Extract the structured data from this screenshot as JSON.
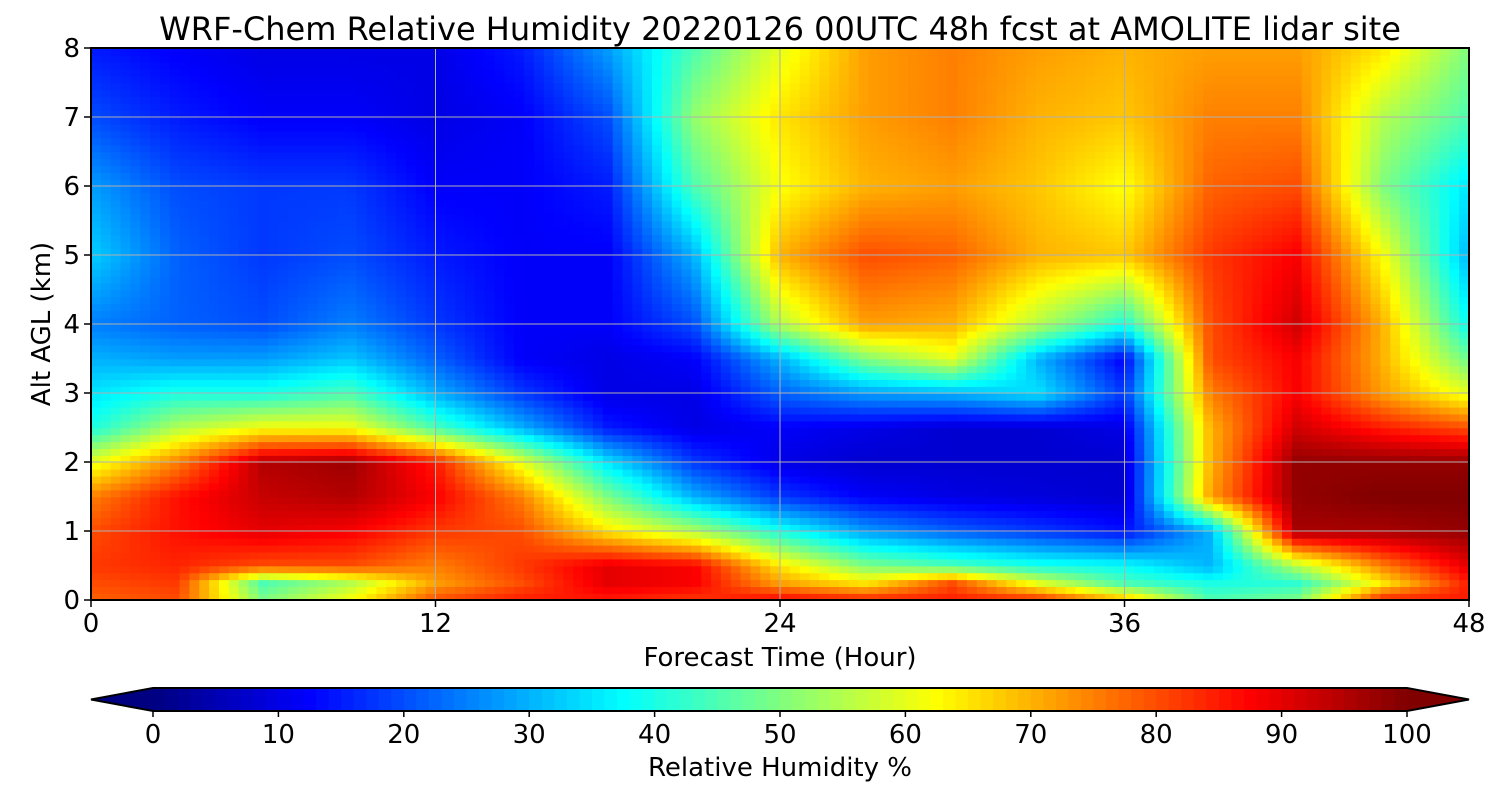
{
  "chart_data": {
    "type": "heatmap",
    "title": "WRF-Chem Relative Humidity 20220126 00UTC 48h fcst at AMOLITE lidar site",
    "xlabel": "Forecast Time (Hour)",
    "ylabel": "Alt AGL (km)",
    "xlim": [
      0,
      48
    ],
    "ylim": [
      0,
      8
    ],
    "x_ticks": [
      "0",
      "12",
      "24",
      "36",
      "48"
    ],
    "y_ticks": [
      "0",
      "1",
      "2",
      "3",
      "4",
      "5",
      "6",
      "7",
      "8"
    ],
    "grid": true,
    "colormap": "jet",
    "colorbar": {
      "label": "Relative Humidity %",
      "range": [
        0,
        100
      ],
      "ticks": [
        "0",
        "10",
        "20",
        "30",
        "40",
        "50",
        "60",
        "70",
        "80",
        "90",
        "100"
      ],
      "extend": "both",
      "orientation": "horizontal"
    },
    "z_units": "%",
    "x": [
      0,
      3,
      6,
      9,
      12,
      15,
      18,
      21,
      24,
      27,
      30,
      33,
      36,
      39,
      42,
      45,
      48
    ],
    "y": [
      0,
      0.25,
      0.5,
      1,
      1.5,
      2,
      2.5,
      3,
      3.5,
      4,
      5,
      6,
      7,
      8
    ],
    "z": [
      [
        78,
        80,
        50,
        62,
        80,
        85,
        85,
        82,
        88,
        85,
        85,
        84,
        70,
        45,
        50,
        85,
        85
      ],
      [
        80,
        82,
        45,
        55,
        72,
        80,
        90,
        88,
        72,
        65,
        80,
        60,
        45,
        40,
        42,
        65,
        85
      ],
      [
        82,
        84,
        80,
        80,
        75,
        82,
        90,
        88,
        65,
        50,
        45,
        40,
        38,
        30,
        55,
        75,
        90
      ],
      [
        80,
        86,
        90,
        88,
        82,
        80,
        65,
        55,
        40,
        28,
        22,
        18,
        14,
        30,
        96,
        96,
        98
      ],
      [
        75,
        86,
        93,
        95,
        88,
        75,
        50,
        30,
        18,
        12,
        10,
        9,
        8,
        72,
        98,
        100,
        100
      ],
      [
        60,
        75,
        95,
        97,
        85,
        60,
        35,
        18,
        10,
        8,
        8,
        8,
        8,
        70,
        98,
        98,
        98
      ],
      [
        40,
        55,
        62,
        62,
        45,
        30,
        15,
        10,
        12,
        10,
        8,
        8,
        10,
        70,
        92,
        85,
        80
      ],
      [
        35,
        40,
        40,
        45,
        30,
        18,
        10,
        10,
        22,
        28,
        30,
        35,
        18,
        75,
        88,
        72,
        60
      ],
      [
        30,
        28,
        28,
        32,
        22,
        12,
        10,
        12,
        30,
        50,
        60,
        30,
        12,
        80,
        88,
        70,
        48
      ],
      [
        25,
        22,
        20,
        25,
        18,
        12,
        12,
        20,
        55,
        72,
        70,
        55,
        40,
        80,
        92,
        70,
        38
      ],
      [
        33,
        22,
        18,
        20,
        15,
        12,
        12,
        30,
        70,
        80,
        78,
        70,
        68,
        82,
        88,
        62,
        30
      ],
      [
        28,
        20,
        18,
        18,
        12,
        12,
        15,
        45,
        62,
        70,
        72,
        68,
        62,
        78,
        80,
        50,
        35
      ],
      [
        20,
        15,
        12,
        12,
        10,
        12,
        20,
        52,
        65,
        72,
        75,
        70,
        68,
        75,
        75,
        55,
        45
      ],
      [
        15,
        12,
        10,
        10,
        10,
        15,
        28,
        45,
        60,
        72,
        75,
        72,
        70,
        72,
        72,
        65,
        50
      ]
    ]
  }
}
